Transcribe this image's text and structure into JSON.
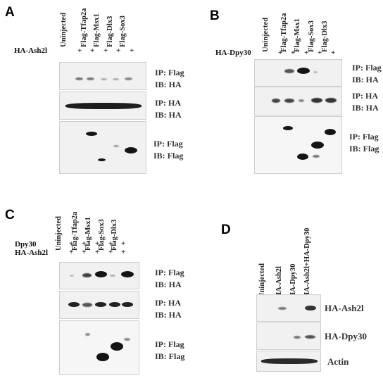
{
  "panels": {
    "A": {
      "letter": "A",
      "lanes": [
        "Uninjected",
        "Flag-Tfap2a",
        "Flag-Msx1",
        "Flag-Dlx3",
        "Flag-Sox3"
      ],
      "condition": "HA-Ash2l",
      "plus": "+",
      "blots": [
        {
          "line1": "IP: Flag",
          "line2": "IB: HA"
        },
        {
          "line1": "IP: HA",
          "line2": "IB: HA"
        },
        {
          "line1": "IP: Flag",
          "line2": "IB: Flag"
        }
      ]
    },
    "B": {
      "letter": "B",
      "lanes": [
        "Uninjected",
        "Flag-Tfap2a",
        "Flag-Msx1",
        "Flag-Sox3",
        "Flag-Dlx3"
      ],
      "condition": "HA-Dpy30",
      "plus": "+",
      "blots": [
        {
          "line1": "IP: Flag",
          "line2": "IB: HA"
        },
        {
          "line1": "IP: HA",
          "line2": "IB: HA"
        },
        {
          "line1": "IP: Flag",
          "line2": "IB: Flag"
        }
      ]
    },
    "C": {
      "letter": "C",
      "lanes": [
        "Uninjected",
        "Flag-Tfap2a",
        "Flag-Msx1",
        "Flag-Sox3",
        "Flag-Dlx3"
      ],
      "condition1": "Dpy30",
      "condition2": "HA-Ash2l",
      "plus": "+",
      "blots": [
        {
          "line1": "IP: Flag",
          "line2": "IB: HA"
        },
        {
          "line1": "IP: HA",
          "line2": "IB: HA"
        },
        {
          "line1": "IP: Flag",
          "line2": "IB: Flag"
        }
      ]
    },
    "D": {
      "letter": "D",
      "lanes": [
        "Uninjected",
        "HA-Ash2l",
        "HA-Dpy30",
        "HA-Ash2l+HA-Dpy30"
      ],
      "blots": [
        {
          "label": "HA-Ash2l"
        },
        {
          "label": "HA-Dpy30"
        },
        {
          "label": "Actin"
        }
      ]
    }
  }
}
